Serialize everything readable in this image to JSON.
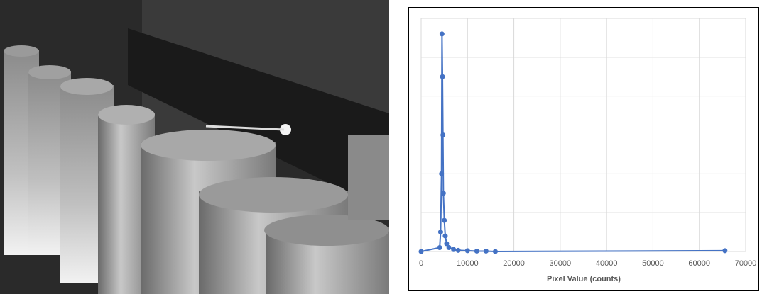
{
  "chart_data": {
    "type": "line",
    "xlabel": "Pixel Value (counts)",
    "series": [
      {
        "color": "#4472c4",
        "x": [
          0,
          4000,
          4200,
          4400,
          4500,
          4600,
          4700,
          4800,
          5000,
          5200,
          5500,
          6000,
          7000,
          8000,
          10000,
          12000,
          14000,
          16000,
          65535
        ],
        "values": [
          0,
          0.1,
          0.5,
          2.0,
          5.6,
          4.5,
          3.0,
          1.5,
          0.8,
          0.4,
          0.2,
          0.1,
          0.05,
          0.03,
          0.02,
          0.01,
          0.01,
          0,
          0.02
        ]
      }
    ],
    "xlim": [
      0,
      70000
    ],
    "xticks": [
      0,
      10000,
      20000,
      30000,
      40000,
      50000,
      60000,
      70000
    ],
    "ylim": [
      0,
      6
    ],
    "yticks": [
      0,
      1,
      2,
      3,
      4,
      5,
      6
    ],
    "y_tick_labels": false,
    "grid": true,
    "markers": true
  }
}
